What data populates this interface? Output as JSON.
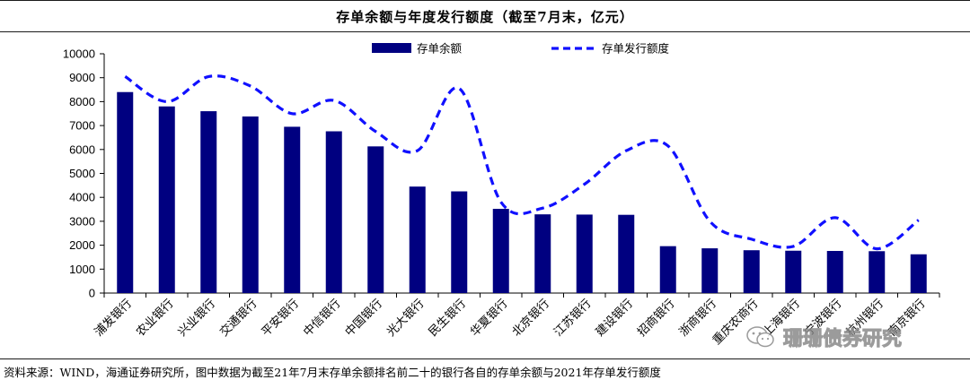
{
  "title": "存单余额与年度发行额度（截至7月末，亿元）",
  "source": "资料来源：WIND，海通证券研究所，图中数据为截至21年7月末存单余额排名前二十的银行各自的存单余额与2021年存单发行额度",
  "watermark": {
    "text": "珊珊债券研究",
    "icon": "wechat-icon"
  },
  "colors": {
    "bar": "#000080",
    "line": "#1010ff",
    "axis": "#000000"
  },
  "chart_data": {
    "type": "bar",
    "categories": [
      "浦发银行",
      "农业银行",
      "兴业银行",
      "交通银行",
      "平安银行",
      "中信银行",
      "中国银行",
      "光大银行",
      "民生银行",
      "华夏银行",
      "北京银行",
      "江苏银行",
      "建设银行",
      "招商银行",
      "浙商银行",
      "重庆农商行",
      "上海银行",
      "宁波银行",
      "杭州银行",
      "南京银行"
    ],
    "series": [
      {
        "name": "存单余额",
        "type": "bar",
        "values": [
          8400,
          7800,
          7600,
          7380,
          6950,
          6760,
          6130,
          4450,
          4250,
          3520,
          3290,
          3280,
          3270,
          1960,
          1870,
          1790,
          1770,
          1760,
          1750,
          1620
        ]
      },
      {
        "name": "存单发行额度",
        "type": "line",
        "style": "dashed",
        "smooth": true,
        "values": [
          9050,
          8000,
          9050,
          8650,
          7500,
          8050,
          6750,
          5950,
          8550,
          3800,
          3550,
          4550,
          5950,
          6150,
          3000,
          2250,
          1950,
          3150,
          1850,
          3050
        ]
      }
    ],
    "ylim": [
      0,
      10000
    ],
    "yticks": [
      "0",
      "1000",
      "2000",
      "3000",
      "4000",
      "5000",
      "6000",
      "7000",
      "8000",
      "9000",
      "10000"
    ],
    "legend": "top",
    "grid": false,
    "xlabel": "",
    "ylabel": ""
  }
}
